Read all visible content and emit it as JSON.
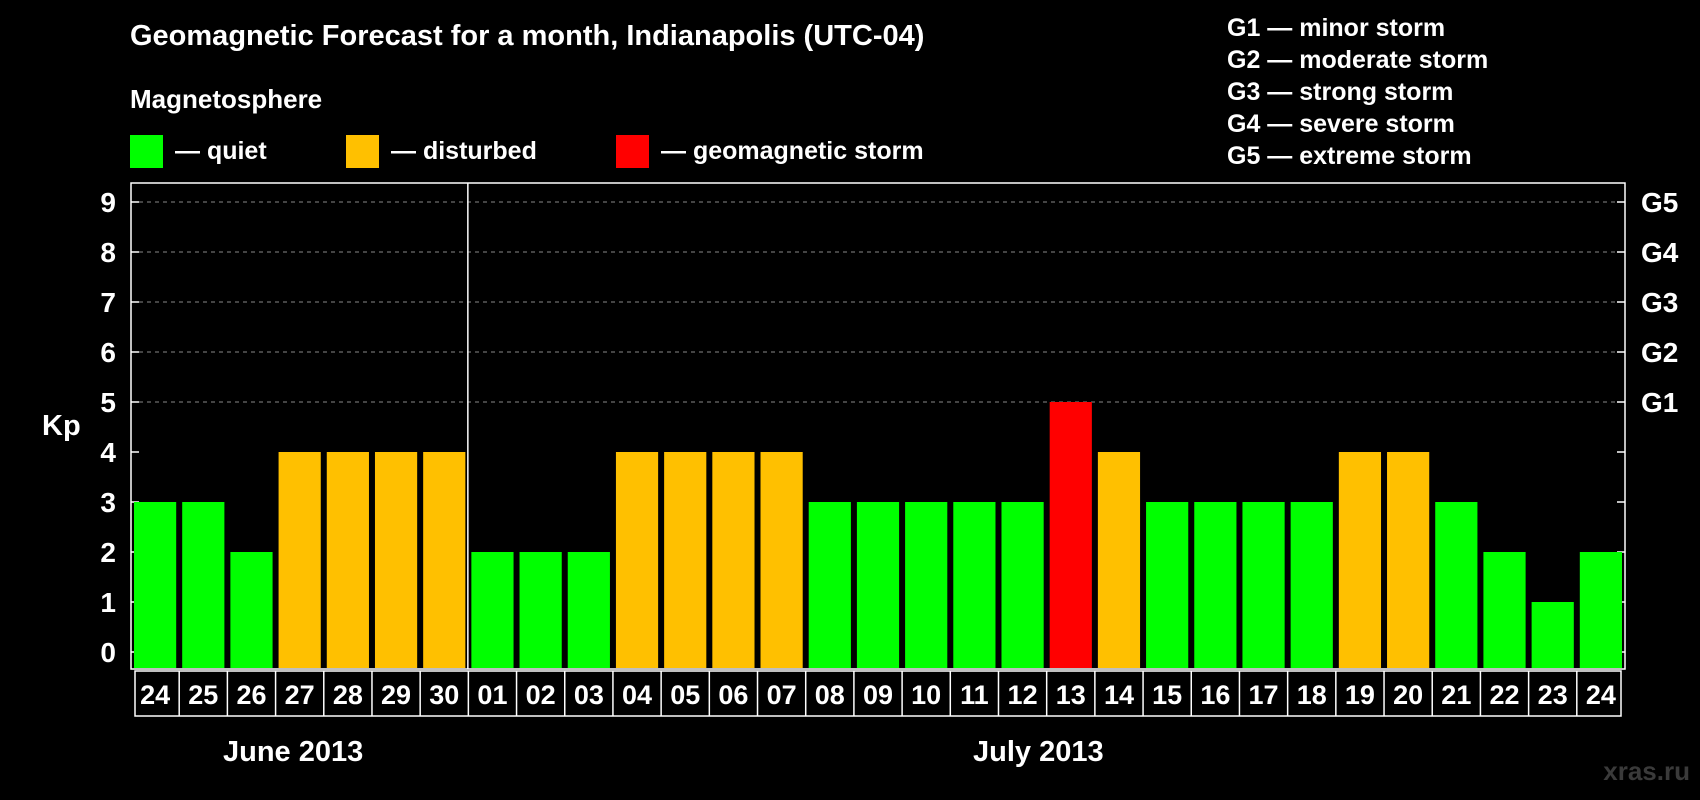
{
  "title": "Geomagnetic Forecast for a month, Indianapolis (UTC-04)",
  "magnetosphere_label": "Magnetosphere",
  "legend": [
    {
      "label": "— quiet",
      "color": "#00ff00"
    },
    {
      "label": "— disturbed",
      "color": "#ffc000"
    },
    {
      "label": "— geomagnetic storm",
      "color": "#ff0000"
    }
  ],
  "g_scale": [
    "G1 — minor storm",
    "G2 — moderate storm",
    "G3 — strong storm",
    "G4 — severe storm",
    "G5 — extreme storm"
  ],
  "months": [
    {
      "label": "June 2013"
    },
    {
      "label": "July 2013"
    }
  ],
  "watermark": "xras.ru",
  "chart_data": {
    "type": "bar",
    "ylabel": "Kp",
    "ylim": [
      0,
      9
    ],
    "y_ticks": [
      0,
      1,
      2,
      3,
      4,
      5,
      6,
      7,
      8,
      9
    ],
    "right_axis_labels": [
      {
        "value": 5,
        "label": "G1"
      },
      {
        "value": 6,
        "label": "G2"
      },
      {
        "value": 7,
        "label": "G3"
      },
      {
        "value": 8,
        "label": "G4"
      },
      {
        "value": 9,
        "label": "G5"
      }
    ],
    "grid": "dashed horizontal",
    "categories": [
      "24",
      "25",
      "26",
      "27",
      "28",
      "29",
      "30",
      "01",
      "02",
      "03",
      "04",
      "05",
      "06",
      "07",
      "08",
      "09",
      "10",
      "11",
      "12",
      "13",
      "14",
      "15",
      "16",
      "17",
      "18",
      "19",
      "20",
      "21",
      "22",
      "23",
      "24"
    ],
    "values": [
      3,
      3,
      2,
      4,
      4,
      4,
      4,
      2,
      2,
      2,
      4,
      4,
      4,
      4,
      3,
      3,
      3,
      3,
      3,
      5,
      4,
      3,
      3,
      3,
      3,
      4,
      4,
      3,
      2,
      1,
      2
    ],
    "colors": {
      "quiet": "#00ff00",
      "disturbed": "#ffc000",
      "storm": "#ff0000"
    },
    "month_boundary_after_index": 6
  }
}
